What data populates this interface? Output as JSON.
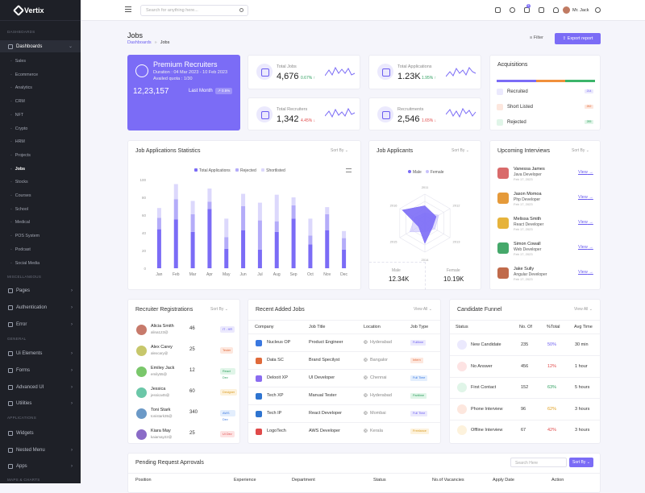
{
  "app": {
    "name": "Vertix"
  },
  "sidebar": {
    "sections": [
      "Dashboards",
      "Miscellaneous",
      "General",
      "Applications",
      "Maps & Charts"
    ],
    "dashboards_label": "Dashboards",
    "subitems": [
      "Sales",
      "Ecommerce",
      "Analytics",
      "CRM",
      "NFT",
      "Crypto",
      "HRM",
      "Projects",
      "Jobs",
      "Stocks",
      "Courses",
      "School",
      "Medical",
      "POS System",
      "Podcast",
      "Social Media"
    ],
    "misc": [
      "Pages",
      "Authentication",
      "Error"
    ],
    "general": [
      "Ui Elements",
      "Forms",
      "Advanced UI",
      "Utilities"
    ],
    "apps": [
      "Widgets",
      "Nested Menu",
      "Apps"
    ]
  },
  "topbar": {
    "search_placeholder": "Search for anything here...",
    "cart_count": "5",
    "user": "Mr. Jack"
  },
  "page": {
    "title": "Jobs",
    "breadcrumb_root": "Dashboards",
    "breadcrumb_current": "Jobs",
    "filter": "Filter",
    "export": "Export report"
  },
  "premium": {
    "title": "Premium Recruiters",
    "duration": "Duration : 04 Mar 2023 - 10 Feb 2023",
    "quota": "Availed quota : 1/30",
    "value": "12,23,157",
    "period": "Last Month",
    "change": "0.5%"
  },
  "stats": [
    {
      "label": "Total Jobs",
      "value": "4,676",
      "change": "0.67%",
      "dir": "up"
    },
    {
      "label": "Total Applications",
      "value": "1.23K",
      "change": "1.95%",
      "dir": "up"
    },
    {
      "label": "Total Recruiters",
      "value": "1,342",
      "change": "4.45%",
      "dir": "down"
    },
    {
      "label": "Recruitments",
      "value": "2,546",
      "change": "1.65%",
      "dir": "down"
    }
  ],
  "acquisitions": {
    "title": "Acquisitions",
    "items": [
      {
        "label": "Recruited",
        "badge": "214",
        "color": "#7b6cf6"
      },
      {
        "label": "Short Listed",
        "badge": "262",
        "color": "#f0903c"
      },
      {
        "label": "Rejected",
        "badge": "285",
        "color": "#3cb46a"
      }
    ]
  },
  "job_stats": {
    "title": "Job Applications Statistics",
    "sort": "Sort By"
  },
  "chart_data": [
    {
      "type": "bar",
      "title": "Job Applications Statistics",
      "categories": [
        "Jan",
        "Feb",
        "Mar",
        "Apr",
        "May",
        "Jun",
        "Jul",
        "Aug",
        "Sep",
        "Oct",
        "Nov",
        "Dec"
      ],
      "series": [
        {
          "name": "Total Applications",
          "values": [
            44,
            55,
            41,
            67,
            22,
            43,
            21,
            41,
            56,
            27,
            43,
            21
          ]
        },
        {
          "name": "Rejected",
          "values": [
            13,
            23,
            20,
            8,
            13,
            27,
            33,
            12,
            15,
            10,
            18,
            13
          ]
        },
        {
          "name": "Shortlisted",
          "values": [
            11,
            17,
            15,
            15,
            21,
            14,
            20,
            30,
            9,
            19,
            8,
            8
          ]
        }
      ],
      "stacked": true,
      "ylim": [
        0,
        100
      ],
      "yticks": [
        0,
        20,
        40,
        60,
        80,
        100
      ],
      "legend": "top",
      "colors": [
        "#7b6cf6",
        "#b4acf9",
        "#dcd8fc"
      ]
    },
    {
      "type": "radar",
      "title": "Job Applicants",
      "categories": [
        "2011",
        "2012",
        "2013",
        "2014",
        "2015",
        "2016"
      ],
      "series": [
        {
          "name": "Male",
          "values": [
            60,
            45,
            30,
            70,
            25,
            90
          ]
        },
        {
          "name": "Female",
          "values": [
            35,
            55,
            40,
            30,
            60,
            40
          ]
        }
      ],
      "legend": "top",
      "colors": [
        "#7b6cf6",
        "#c8c2fb"
      ]
    }
  ],
  "applicants": {
    "title": "Job Applicants",
    "sort": "Sort By",
    "male_label": "Male",
    "male_value": "12.34K",
    "female_label": "Female",
    "female_value": "10.19K",
    "ticks": [
      "2011",
      "2012",
      "2013",
      "2014",
      "2015",
      "2016"
    ]
  },
  "interviews": {
    "title": "Upcoming Interviews",
    "sort": "Sort By",
    "view": "View",
    "items": [
      {
        "name": "Vanessa James",
        "role": "Java Developer",
        "date": "Feb 17, 2023",
        "color": "#d96a6a"
      },
      {
        "name": "Jason Momoa",
        "role": "Php Developer",
        "date": "Feb 17, 2023",
        "color": "#e59a3a"
      },
      {
        "name": "Melissa Smith",
        "role": "React Developer",
        "date": "Feb 17, 2023",
        "color": "#e6b33b"
      },
      {
        "name": "Simon Cowall",
        "role": "Web Developer",
        "date": "Feb 17, 2023",
        "color": "#45a86a"
      },
      {
        "name": "Jake Sully",
        "role": "Angular Developer",
        "date": "Feb 17, 2023",
        "color": "#c06a4a"
      }
    ]
  },
  "recruiters": {
    "title": "Recruiter Registrations",
    "sort": "Sort By",
    "items": [
      {
        "name": "Alicia Smith",
        "email": "alina123@",
        "num": "46",
        "badge": "IT - HR",
        "bg": "#ebe9fd",
        "fg": "#6b5df0"
      },
      {
        "name": "Alex Carey",
        "email": "alexcary@",
        "num": "25",
        "badge": "Tester",
        "bg": "#fde7de",
        "fg": "#e06a3a"
      },
      {
        "name": "Emiley Jack",
        "email": "emily55@",
        "num": "12",
        "badge": "React Dev",
        "bg": "#e0f5e8",
        "fg": "#30a060"
      },
      {
        "name": "Jessica",
        "email": "jessica45@",
        "num": "60",
        "badge": "Designer",
        "bg": "#fdf2dc",
        "fg": "#d99a20"
      },
      {
        "name": "Toni Stark",
        "email": "tonistark35@",
        "num": "340",
        "badge": "AWS Dev",
        "bg": "#e3eefd",
        "fg": "#3a78e0"
      },
      {
        "name": "Kiara May",
        "email": "kaiamay22@",
        "num": "25",
        "badge": "UI Dev",
        "bg": "#fde3e3",
        "fg": "#e04a4a"
      }
    ]
  },
  "recent_jobs": {
    "title": "Recent Added Jobs",
    "view_all": "View All",
    "headers": [
      "Company",
      "Job Title",
      "Location",
      "Job Type"
    ],
    "rows": [
      {
        "company": "Nucleus OP",
        "title": "Product Engineer",
        "location": "Hyderabad",
        "type": "Fulltime",
        "tbg": "#ebe9fd",
        "tfg": "#6b5df0",
        "c": "#3a78e0"
      },
      {
        "company": "Data SC",
        "title": "Brand Specilyst",
        "location": "Bangalor",
        "type": "Intern",
        "tbg": "#fde7de",
        "tfg": "#e06a3a",
        "c": "#e06a3a"
      },
      {
        "company": "Delooit XP",
        "title": "UI Developer",
        "location": "Chennai",
        "type": "Full Time",
        "tbg": "#e3eefd",
        "tfg": "#3a78e0",
        "c": "#8a6cf0"
      },
      {
        "company": "Tech XP",
        "title": "Manual Tester",
        "location": "Hyderabad",
        "type": "Parttime",
        "tbg": "#e0f5e8",
        "tfg": "#30a060",
        "c": "#2e74d0"
      },
      {
        "company": "Tech IP",
        "title": "React Developer",
        "location": "Mombai",
        "type": "Full Time",
        "tbg": "#ebe9fd",
        "tfg": "#6b5df0",
        "c": "#2e74d0"
      },
      {
        "company": "LogoTech",
        "title": "AWS Developer",
        "location": "Kerala",
        "type": "Freelance",
        "tbg": "#fdf2dc",
        "tfg": "#d99a20",
        "c": "#e04a4a"
      }
    ]
  },
  "funnel": {
    "title": "Candidate Funnel",
    "view_all": "View All",
    "headers": [
      "Status",
      "No. Of",
      "%Total",
      "Avg Time"
    ],
    "rows": [
      {
        "status": "New Candidate",
        "num": "235",
        "pct": "50%",
        "time": "30 min",
        "pc": "#6b5df0",
        "ic": "#ebe9fd"
      },
      {
        "status": "No Answer",
        "num": "456",
        "pct": "12%",
        "time": "1 hour",
        "pc": "#e04a4a",
        "ic": "#fde3e3"
      },
      {
        "status": "First Contact",
        "num": "152",
        "pct": "63%",
        "time": "5 hours",
        "pc": "#30a060",
        "ic": "#e0f5e8"
      },
      {
        "status": "Phone Interview",
        "num": "96",
        "pct": "62%",
        "time": "3 hours",
        "pc": "#e0a020",
        "ic": "#fde7de"
      },
      {
        "status": "Offline Interview",
        "num": "67",
        "pct": "42%",
        "time": "3 hours",
        "pc": "#e04a4a",
        "ic": "#fdf2dc"
      }
    ]
  },
  "pending": {
    "title": "Pending Request Aprrovals",
    "search_placeholder": "Search Here",
    "sort": "Sort By",
    "headers": [
      "Position",
      "Experience",
      "Department",
      "Status",
      "No.of Vacancies",
      "Apply Date",
      "Action"
    ]
  }
}
